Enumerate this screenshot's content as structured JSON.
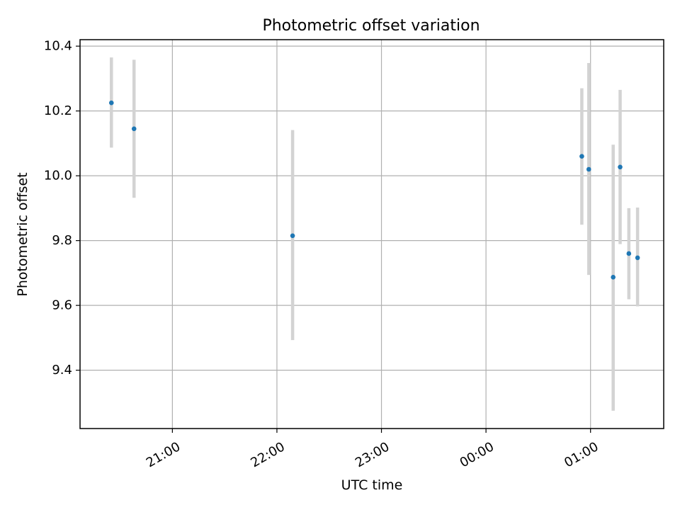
{
  "chart_data": {
    "type": "scatter",
    "title": "Photometric offset variation",
    "xlabel": "UTC time",
    "ylabel": "Photometric offset",
    "x_ticks": [
      "21:00",
      "22:00",
      "23:00",
      "00:00",
      "01:00"
    ],
    "x_ticks_minutes": [
      1260,
      1320,
      1380,
      1440,
      1500
    ],
    "xlim_minutes": [
      1207,
      1542
    ],
    "y_ticks": [
      "9.4",
      "9.6",
      "9.8",
      "10.0",
      "10.2",
      "10.4"
    ],
    "y_tick_values": [
      9.4,
      9.6,
      9.8,
      10.0,
      10.2,
      10.4
    ],
    "ylim": [
      9.22,
      10.42
    ],
    "grid": true,
    "series": [
      {
        "points": [
          {
            "time": "20:25",
            "t_min": 1225,
            "y": 10.225,
            "yerr_low": 10.087,
            "yerr_high": 10.365
          },
          {
            "time": "20:38",
            "t_min": 1238,
            "y": 10.145,
            "yerr_low": 9.932,
            "yerr_high": 10.358
          },
          {
            "time": "22:09",
            "t_min": 1329,
            "y": 9.815,
            "yerr_low": 9.493,
            "yerr_high": 10.141
          },
          {
            "time": "00:55",
            "t_min": 1495,
            "y": 10.06,
            "yerr_low": 9.849,
            "yerr_high": 10.27
          },
          {
            "time": "00:59",
            "t_min": 1499,
            "y": 10.02,
            "yerr_low": 9.694,
            "yerr_high": 10.348
          },
          {
            "time": "01:13",
            "t_min": 1513,
            "y": 9.687,
            "yerr_low": 9.275,
            "yerr_high": 10.096
          },
          {
            "time": "01:17",
            "t_min": 1517,
            "y": 10.027,
            "yerr_low": 9.789,
            "yerr_high": 10.265
          },
          {
            "time": "01:22",
            "t_min": 1522,
            "y": 9.76,
            "yerr_low": 9.619,
            "yerr_high": 9.9
          },
          {
            "time": "01:27",
            "t_min": 1527,
            "y": 9.747,
            "yerr_low": 9.597,
            "yerr_high": 9.902
          }
        ]
      }
    ],
    "colors": {
      "point": "#1f77b4",
      "errorbar": "#d3d3d3",
      "grid": "#b0b0b0",
      "axes": "#000000"
    }
  }
}
